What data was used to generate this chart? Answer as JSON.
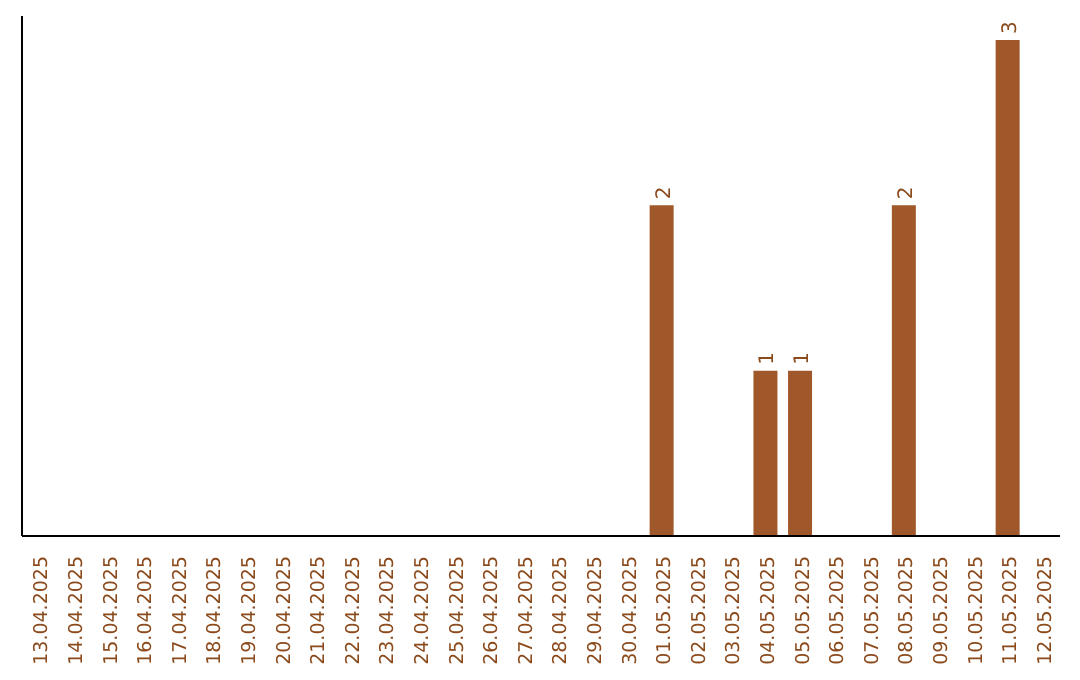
{
  "chart_data": {
    "type": "bar",
    "categories": [
      "13.04.2025",
      "14.04.2025",
      "15.04.2025",
      "16.04.2025",
      "17.04.2025",
      "18.04.2025",
      "19.04.2025",
      "20.04.2025",
      "21.04.2025",
      "22.04.2025",
      "23.04.2025",
      "24.04.2025",
      "25.04.2025",
      "26.04.2025",
      "27.04.2025",
      "28.04.2025",
      "29.04.2025",
      "30.04.2025",
      "01.05.2025",
      "02.05.2025",
      "03.05.2025",
      "04.05.2025",
      "05.05.2025",
      "06.05.2025",
      "07.05.2025",
      "08.05.2025",
      "09.05.2025",
      "10.05.2025",
      "11.05.2025",
      "12.05.2025"
    ],
    "values": [
      null,
      null,
      null,
      null,
      null,
      null,
      null,
      null,
      null,
      null,
      null,
      null,
      null,
      null,
      null,
      null,
      null,
      null,
      2,
      null,
      null,
      1,
      1,
      null,
      null,
      2,
      null,
      null,
      3,
      null
    ],
    "color": "#a0582a",
    "data_labels": true,
    "grid": false,
    "legend": false
  }
}
